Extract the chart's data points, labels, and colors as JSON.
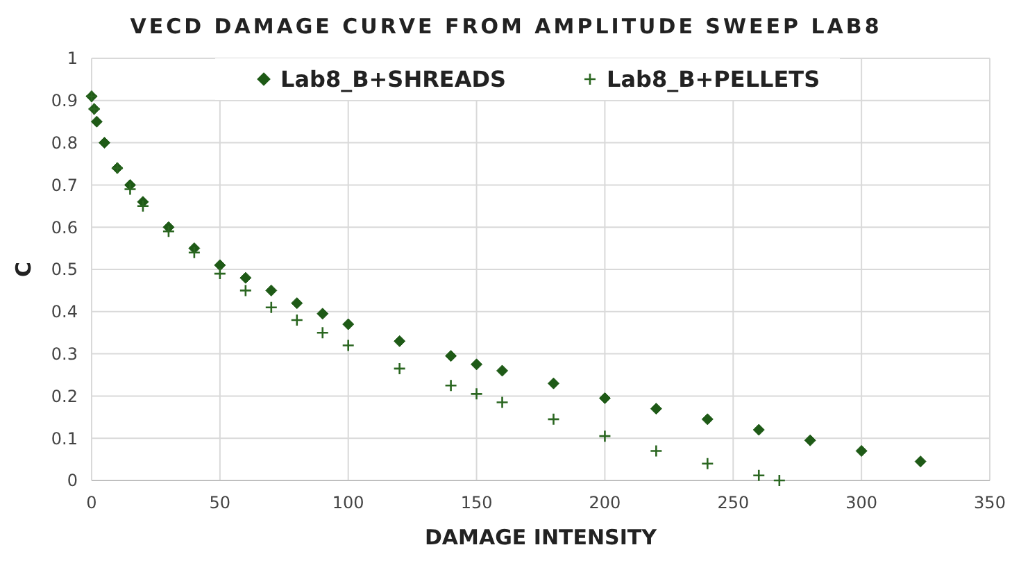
{
  "chart_data": {
    "type": "scatter",
    "title": "VECD DAMAGE CURVE FROM AMPLITUDE SWEEP LAB8",
    "xlabel": "DAMAGE INTENSITY",
    "ylabel": "C",
    "xlim": [
      0,
      350
    ],
    "xticks": [
      0,
      50,
      100,
      150,
      200,
      250,
      300,
      350
    ],
    "ylim": [
      0,
      1
    ],
    "yticks": [
      0,
      0.1,
      0.2,
      0.3,
      0.4,
      0.5,
      0.6,
      0.7,
      0.8,
      0.9,
      1
    ],
    "grid": true,
    "legend": "top",
    "series": [
      {
        "name": "Lab8_B+SHREADS",
        "color": "#1e5a16",
        "marker": "diamond",
        "x": [
          0,
          1,
          2,
          5,
          10,
          15,
          20,
          30,
          40,
          50,
          60,
          70,
          80,
          90,
          100,
          120,
          140,
          150,
          160,
          180,
          200,
          220,
          240,
          260,
          280,
          300,
          323
        ],
        "values": [
          0.91,
          0.88,
          0.85,
          0.8,
          0.74,
          0.7,
          0.66,
          0.6,
          0.55,
          0.51,
          0.48,
          0.45,
          0.42,
          0.395,
          0.37,
          0.33,
          0.295,
          0.275,
          0.26,
          0.23,
          0.195,
          0.17,
          0.145,
          0.12,
          0.095,
          0.07,
          0.045
        ]
      },
      {
        "name": "Lab8_B+PELLETS",
        "color": "#2a6620",
        "marker": "cross",
        "x": [
          0,
          1,
          10,
          15,
          20,
          30,
          40,
          50,
          60,
          70,
          80,
          90,
          100,
          120,
          140,
          150,
          160,
          180,
          200,
          220,
          240,
          260,
          268
        ],
        "values": [
          0.91,
          0.88,
          0.74,
          0.69,
          0.65,
          0.59,
          0.54,
          0.49,
          0.45,
          0.41,
          0.38,
          0.35,
          0.32,
          0.265,
          0.225,
          0.205,
          0.185,
          0.145,
          0.105,
          0.07,
          0.04,
          0.012,
          0
        ]
      }
    ]
  }
}
